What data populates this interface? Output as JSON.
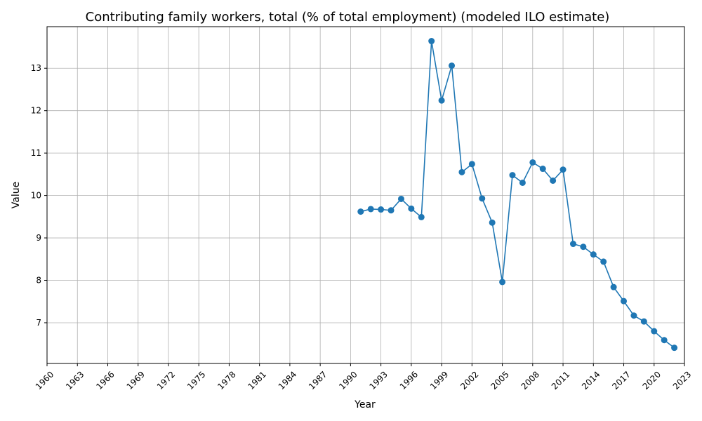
{
  "chart_data": {
    "type": "line",
    "title": "Contributing family workers, total (% of total employment) (modeled ILO estimate)",
    "xlabel": "Year",
    "ylabel": "Value",
    "xlim": [
      1960,
      2023
    ],
    "ylim": [
      6.04,
      13.98
    ],
    "x_ticks": [
      1960,
      1963,
      1966,
      1969,
      1972,
      1975,
      1978,
      1981,
      1984,
      1987,
      1990,
      1993,
      1996,
      1999,
      2002,
      2005,
      2008,
      2011,
      2014,
      2017,
      2020,
      2023
    ],
    "y_ticks": [
      7,
      8,
      9,
      10,
      11,
      12,
      13
    ],
    "grid": true,
    "marker": "circle",
    "color": "#1f77b4",
    "series": [
      {
        "x": [
          1991,
          1992,
          1993,
          1994,
          1995,
          1996,
          1997,
          1998,
          1999,
          2000,
          2001,
          2002,
          2003,
          2004,
          2005,
          2006,
          2007,
          2008,
          2009,
          2010,
          2011,
          2012,
          2013,
          2014,
          2015,
          2016,
          2017,
          2018,
          2019,
          2020,
          2021,
          2022
        ],
        "y": [
          9.62,
          9.68,
          9.67,
          9.65,
          9.92,
          9.69,
          9.49,
          13.64,
          12.24,
          13.06,
          10.55,
          10.74,
          9.93,
          9.36,
          7.96,
          10.48,
          10.3,
          10.78,
          10.63,
          10.35,
          10.61,
          8.86,
          8.79,
          8.61,
          8.44,
          7.84,
          7.51,
          7.17,
          7.03,
          6.8,
          6.59,
          6.41
        ]
      }
    ]
  }
}
